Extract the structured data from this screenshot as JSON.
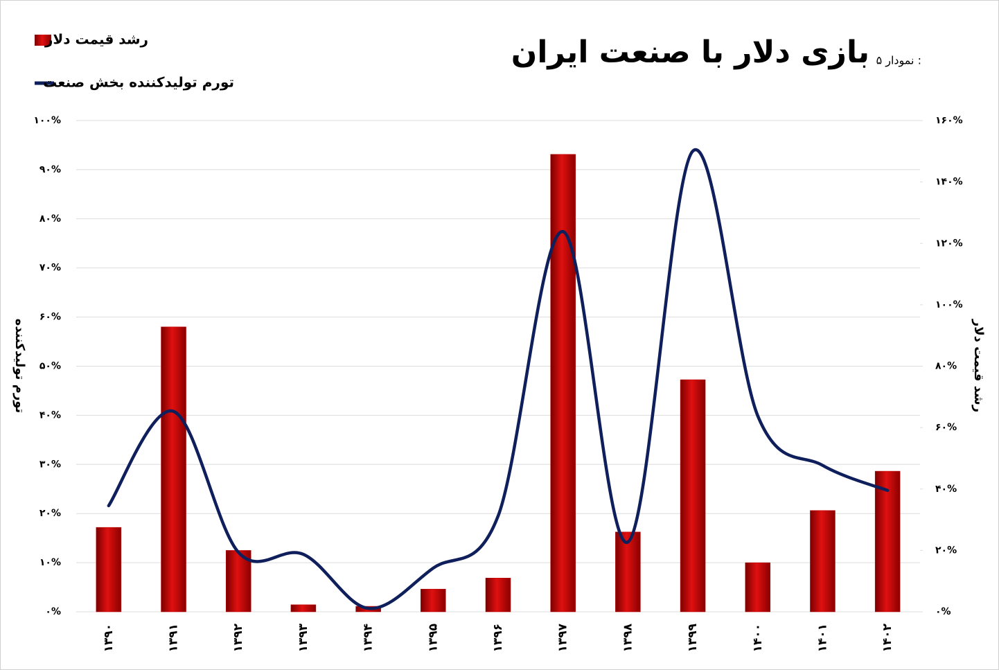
{
  "chart_data": {
    "type": "bar-line",
    "title": "بازی دلار با صنعت ایران",
    "subtitle": "نمودار ۵ :",
    "y_label": "تورم تولیدکننده",
    "y2_label": "رشد قیمت دلار",
    "categories": [
      "۱۳۹۰",
      "۱۳۹۱",
      "۱۳۹۲",
      "۱۳۹۳",
      "۱۳۹۴",
      "۱۳۹۵",
      "۱۳۹۶",
      "۱۳۹۷",
      "۱۳۹۸",
      "۱۳۹۹",
      "۱۴۰۰",
      "۱۴۰۱",
      "۱۴۰۲"
    ],
    "series": [
      {
        "name": "رشد قیمت دلار",
        "type": "bar",
        "axis": "y2",
        "color": "#c00000",
        "values": [
          27.5,
          92.8,
          20,
          2.3,
          1.8,
          7.4,
          11,
          149,
          26,
          75.6,
          16,
          33,
          45.8
        ]
      },
      {
        "name": "تورم تولیدکننده بخش صنعت",
        "type": "line",
        "axis": "y",
        "color": "#0f1f5c",
        "values": [
          21.6,
          40.8,
          12.1,
          11.7,
          0.7,
          8.9,
          19.5,
          77.4,
          14.2,
          93.8,
          39.9,
          29.8,
          24.7
        ]
      }
    ],
    "ylim": [
      0,
      100
    ],
    "yticks": [
      {
        "value": 0,
        "label": "۰%"
      },
      {
        "value": 10,
        "label": "۱۰%"
      },
      {
        "value": 20,
        "label": "۲۰%"
      },
      {
        "value": 30,
        "label": "۳۰%"
      },
      {
        "value": 40,
        "label": "۴۰%"
      },
      {
        "value": 50,
        "label": "۵۰%"
      },
      {
        "value": 60,
        "label": "۶۰%"
      },
      {
        "value": 70,
        "label": "۷۰%"
      },
      {
        "value": 80,
        "label": "۸۰%"
      },
      {
        "value": 90,
        "label": "۹۰%"
      },
      {
        "value": 100,
        "label": "۱۰۰%"
      }
    ],
    "y2lim": [
      0,
      160
    ],
    "y2ticks": [
      {
        "value": 0,
        "label": "۰%"
      },
      {
        "value": 20,
        "label": "۲۰%"
      },
      {
        "value": 40,
        "label": "۴۰%"
      },
      {
        "value": 60,
        "label": "۶۰%"
      },
      {
        "value": 80,
        "label": "۸۰%"
      },
      {
        "value": 100,
        "label": "۱۰۰%"
      },
      {
        "value": 120,
        "label": "۱۲۰%"
      },
      {
        "value": 140,
        "label": "۱۴۰%"
      },
      {
        "value": 160,
        "label": "۱۶۰%"
      }
    ],
    "grid": true
  }
}
